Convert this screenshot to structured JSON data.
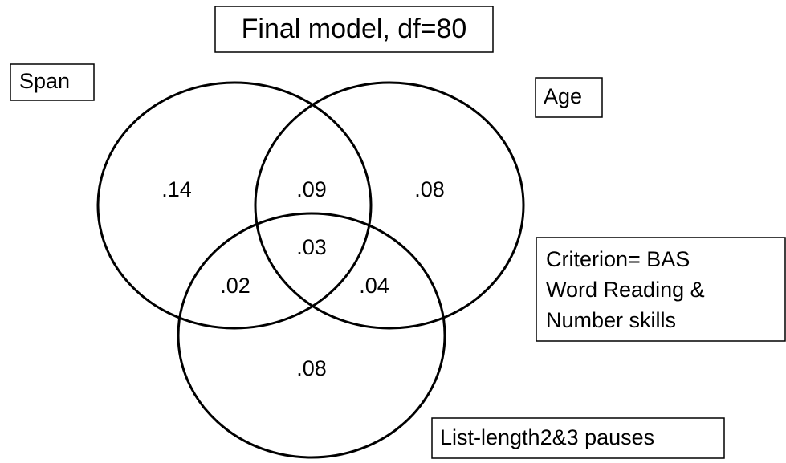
{
  "title": "Final model, df=80",
  "sets": [
    {
      "label": "Span"
    },
    {
      "label": "Age"
    },
    {
      "label": "List-length2&3 pauses"
    }
  ],
  "criterion": {
    "lines": [
      "Criterion= BAS",
      "Word Reading &",
      "Number skills"
    ]
  },
  "regions": [
    {
      "sets": "Span",
      "label": ".14"
    },
    {
      "sets": "Span & Age",
      "label": ".09"
    },
    {
      "sets": "Age",
      "label": ".08"
    },
    {
      "sets": "Span & Age & List-length2&3 pauses",
      "label": ".03"
    },
    {
      "sets": "Span & List-length2&3 pauses",
      "label": ".02"
    },
    {
      "sets": "Age & List-length2&3 pauses",
      "label": ".04"
    },
    {
      "sets": "List-length2&3 pauses",
      "label": ".08"
    }
  ]
}
